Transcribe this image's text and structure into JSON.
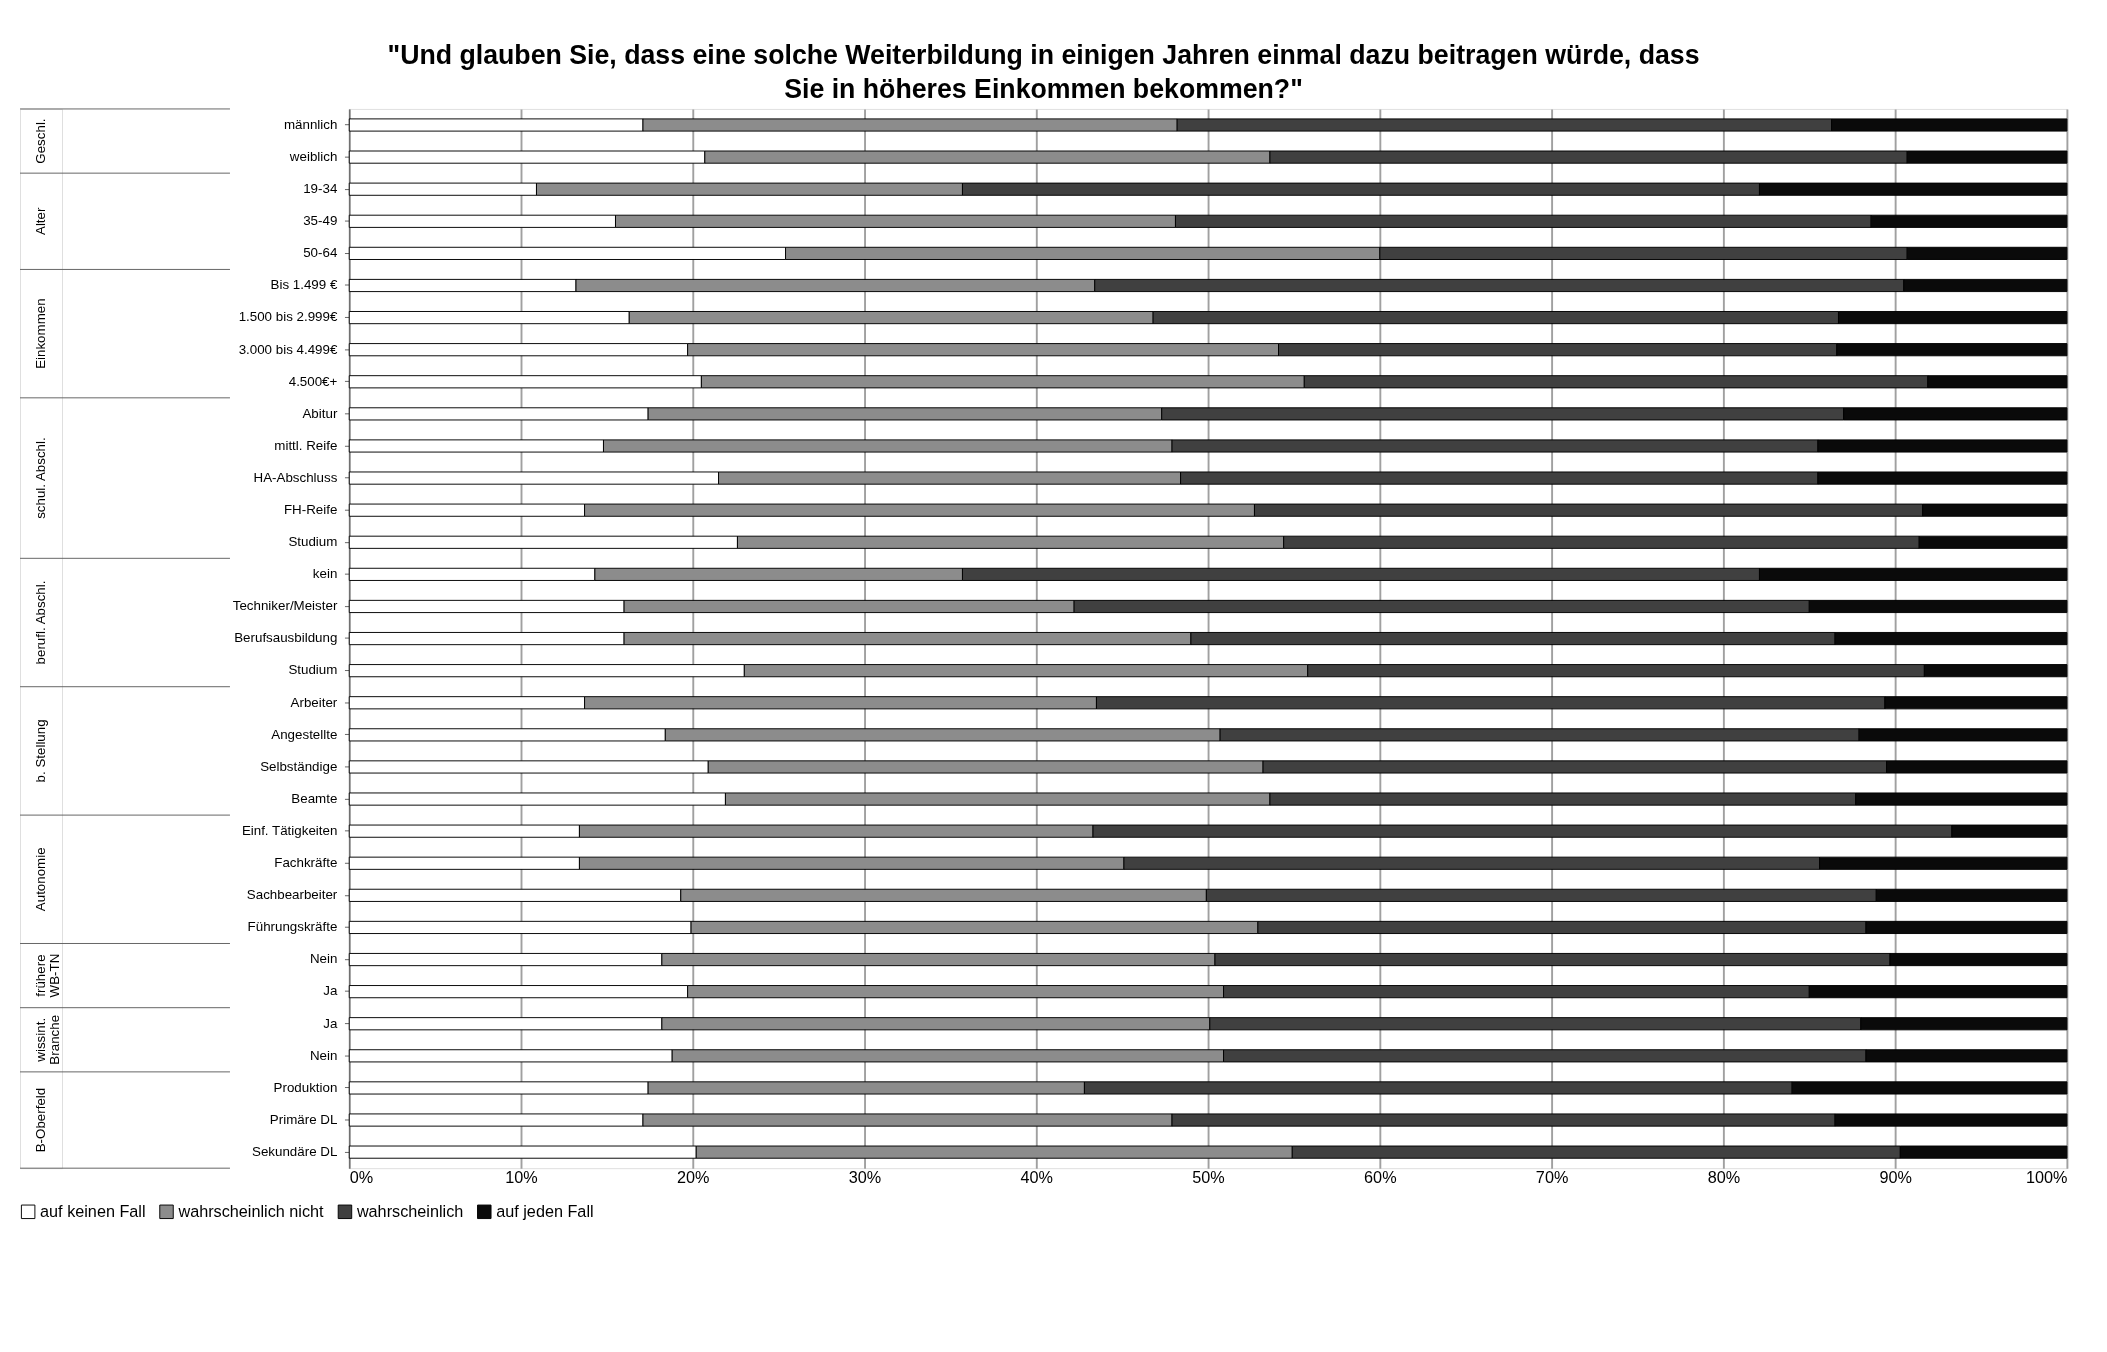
{
  "chart_data": {
    "type": "bar",
    "orientation": "horizontal",
    "stacked": true,
    "title": "\"Und glauben Sie, dass eine solche Weiterbildung in einigen Jahren einmal dazu beitragen würde, dass Sie in höheres Einkommen bekommen?\"",
    "categories": [
      "männlich",
      "weiblich",
      "19-34",
      "35-49",
      "50-64",
      "Bis 1.499 €",
      "1.500 bis 2.999€",
      "3.000 bis 4.499€",
      "4.500€+",
      "Abitur",
      "mittl. Reife",
      "HA-Abschluss",
      "FH-Reife",
      "Studium",
      "kein",
      "Techniker/Meister",
      "Berufsausbildung",
      "Studium",
      "Arbeiter",
      "Angestellte",
      "Selbständige",
      "Beamte",
      "Einf. Tätigkeiten",
      "Fachkräfte",
      "Sachbearbeiter",
      "Führungskräfte",
      "Nein",
      "Ja",
      "Ja",
      "Nein",
      "Produktion",
      "Primäre DL",
      "Sekundäre DL"
    ],
    "series": [
      {
        "name": "auf keinen Fall",
        "color": "#ffffff",
        "values": [
          17.1,
          20.7,
          10.9,
          15.5,
          25.4,
          13.2,
          16.3,
          19.7,
          20.5,
          17.4,
          14.8,
          21.5,
          13.7,
          22.6,
          14.3,
          16.0,
          16.0,
          23.0,
          13.7,
          18.4,
          20.9,
          21.9,
          13.4,
          13.4,
          19.3,
          19.9,
          18.2,
          19.7,
          18.2,
          18.8,
          17.4,
          17.1,
          20.2
        ]
      },
      {
        "name": "wahrscheinlich nicht",
        "color": "#8c8c8c",
        "values": [
          31.1,
          32.9,
          24.8,
          32.6,
          34.6,
          30.2,
          30.5,
          34.4,
          35.1,
          29.9,
          33.1,
          26.9,
          39.0,
          31.8,
          21.4,
          26.2,
          33.0,
          32.8,
          29.8,
          32.3,
          32.3,
          31.7,
          29.9,
          31.7,
          30.6,
          33.0,
          32.2,
          31.2,
          31.9,
          32.1,
          25.4,
          30.8,
          34.7
        ]
      },
      {
        "name": "wahrscheinlich",
        "color": "#404040",
        "values": [
          38.1,
          37.1,
          46.4,
          40.5,
          30.7,
          47.1,
          39.9,
          32.5,
          36.3,
          39.7,
          37.6,
          37.1,
          38.9,
          37.0,
          46.4,
          42.8,
          37.5,
          35.9,
          45.9,
          37.2,
          36.3,
          34.1,
          50.0,
          40.5,
          39.0,
          35.4,
          39.3,
          34.1,
          37.9,
          37.4,
          41.2,
          38.6,
          35.4
        ]
      },
      {
        "name": "auf jeden Fall",
        "color": "#0a0a0a",
        "values": [
          13.7,
          9.3,
          17.9,
          11.4,
          9.3,
          9.5,
          13.3,
          13.4,
          8.1,
          13.0,
          14.5,
          14.5,
          8.4,
          8.6,
          17.9,
          15.0,
          13.5,
          8.3,
          10.6,
          12.1,
          10.5,
          12.3,
          6.7,
          14.4,
          11.1,
          11.7,
          10.3,
          15.0,
          12.0,
          11.7,
          16.0,
          13.5,
          9.7
        ]
      }
    ],
    "xlim": [
      0,
      100
    ],
    "xticks": [
      {
        "value": 0,
        "label": "0%"
      },
      {
        "value": 10,
        "label": "10%"
      },
      {
        "value": 20,
        "label": "20%"
      },
      {
        "value": 30,
        "label": "30%"
      },
      {
        "value": 40,
        "label": "40%"
      },
      {
        "value": 50,
        "label": "50%"
      },
      {
        "value": 60,
        "label": "60%"
      },
      {
        "value": 70,
        "label": "70%"
      },
      {
        "value": 80,
        "label": "80%"
      },
      {
        "value": 90,
        "label": "90%"
      },
      {
        "value": 100,
        "label": "100%"
      }
    ],
    "annotations": [
      "Geschl.",
      "Alter",
      "Einkommen",
      "schul. Abschl.",
      "berufl. Abschl.",
      "b. Stellung",
      "Autonomie",
      "frühere WB-TN",
      "wissint. Branche",
      "B-Oberfeld"
    ],
    "grid": "x",
    "legend": "bottom"
  }
}
